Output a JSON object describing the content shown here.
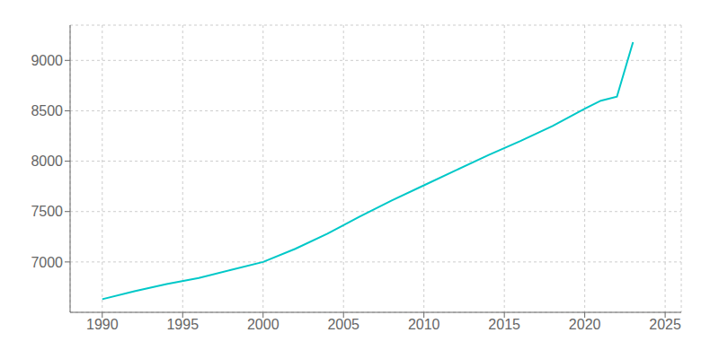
{
  "chart_data": {
    "type": "line",
    "x": [
      1990,
      1992,
      1994,
      1996,
      1998,
      2000,
      2002,
      2004,
      2006,
      2008,
      2010,
      2012,
      2014,
      2016,
      2018,
      2020,
      2021,
      2022,
      2023
    ],
    "values": [
      6630,
      6710,
      6780,
      6840,
      6920,
      7000,
      7130,
      7280,
      7450,
      7610,
      7760,
      7910,
      8060,
      8200,
      8350,
      8520,
      8600,
      8640,
      9180
    ],
    "color": "#00C8C8",
    "xlim": [
      1988,
      2026
    ],
    "xticks": [
      1990,
      1995,
      2000,
      2005,
      2010,
      2015,
      2020,
      2025
    ],
    "ylim": [
      6500,
      9350
    ],
    "yticks": [
      7000,
      7500,
      8000,
      8500,
      9000
    ],
    "grid": true
  }
}
